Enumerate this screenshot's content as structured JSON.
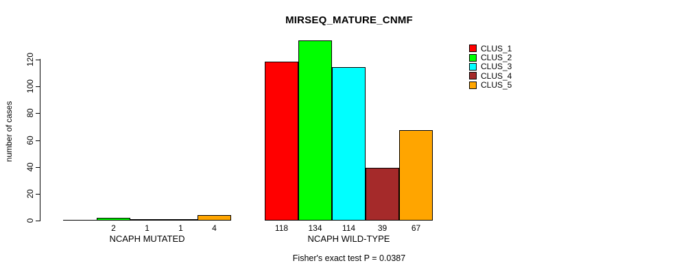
{
  "chart_data": {
    "type": "bar",
    "title": "MIRSEQ_MATURE_CNMF",
    "ylabel": "number of cases",
    "xlabel": "",
    "categories": [
      "NCAPH MUTATED",
      "NCAPH WILD-TYPE"
    ],
    "series": [
      {
        "name": "CLUS_1",
        "color": "#FF0000",
        "values": [
          0,
          118
        ]
      },
      {
        "name": "CLUS_2",
        "color": "#00FF00",
        "values": [
          2,
          134
        ]
      },
      {
        "name": "CLUS_3",
        "color": "#00FFFF",
        "values": [
          1,
          114
        ]
      },
      {
        "name": "CLUS_4",
        "color": "#A52A2A",
        "values": [
          1,
          39
        ]
      },
      {
        "name": "CLUS_5",
        "color": "#FFA500",
        "values": [
          4,
          67
        ]
      }
    ],
    "bar_value_labels": [
      [
        "",
        "2",
        "1",
        "1",
        "4"
      ],
      [
        "118",
        "134",
        "114",
        "39",
        "67"
      ]
    ],
    "yticks": [
      0,
      20,
      40,
      60,
      80,
      100,
      120
    ],
    "ylim": [
      0,
      134
    ],
    "grid": false,
    "legend_position": "right",
    "annotation": "Fisher's exact test P = 0.0387"
  }
}
